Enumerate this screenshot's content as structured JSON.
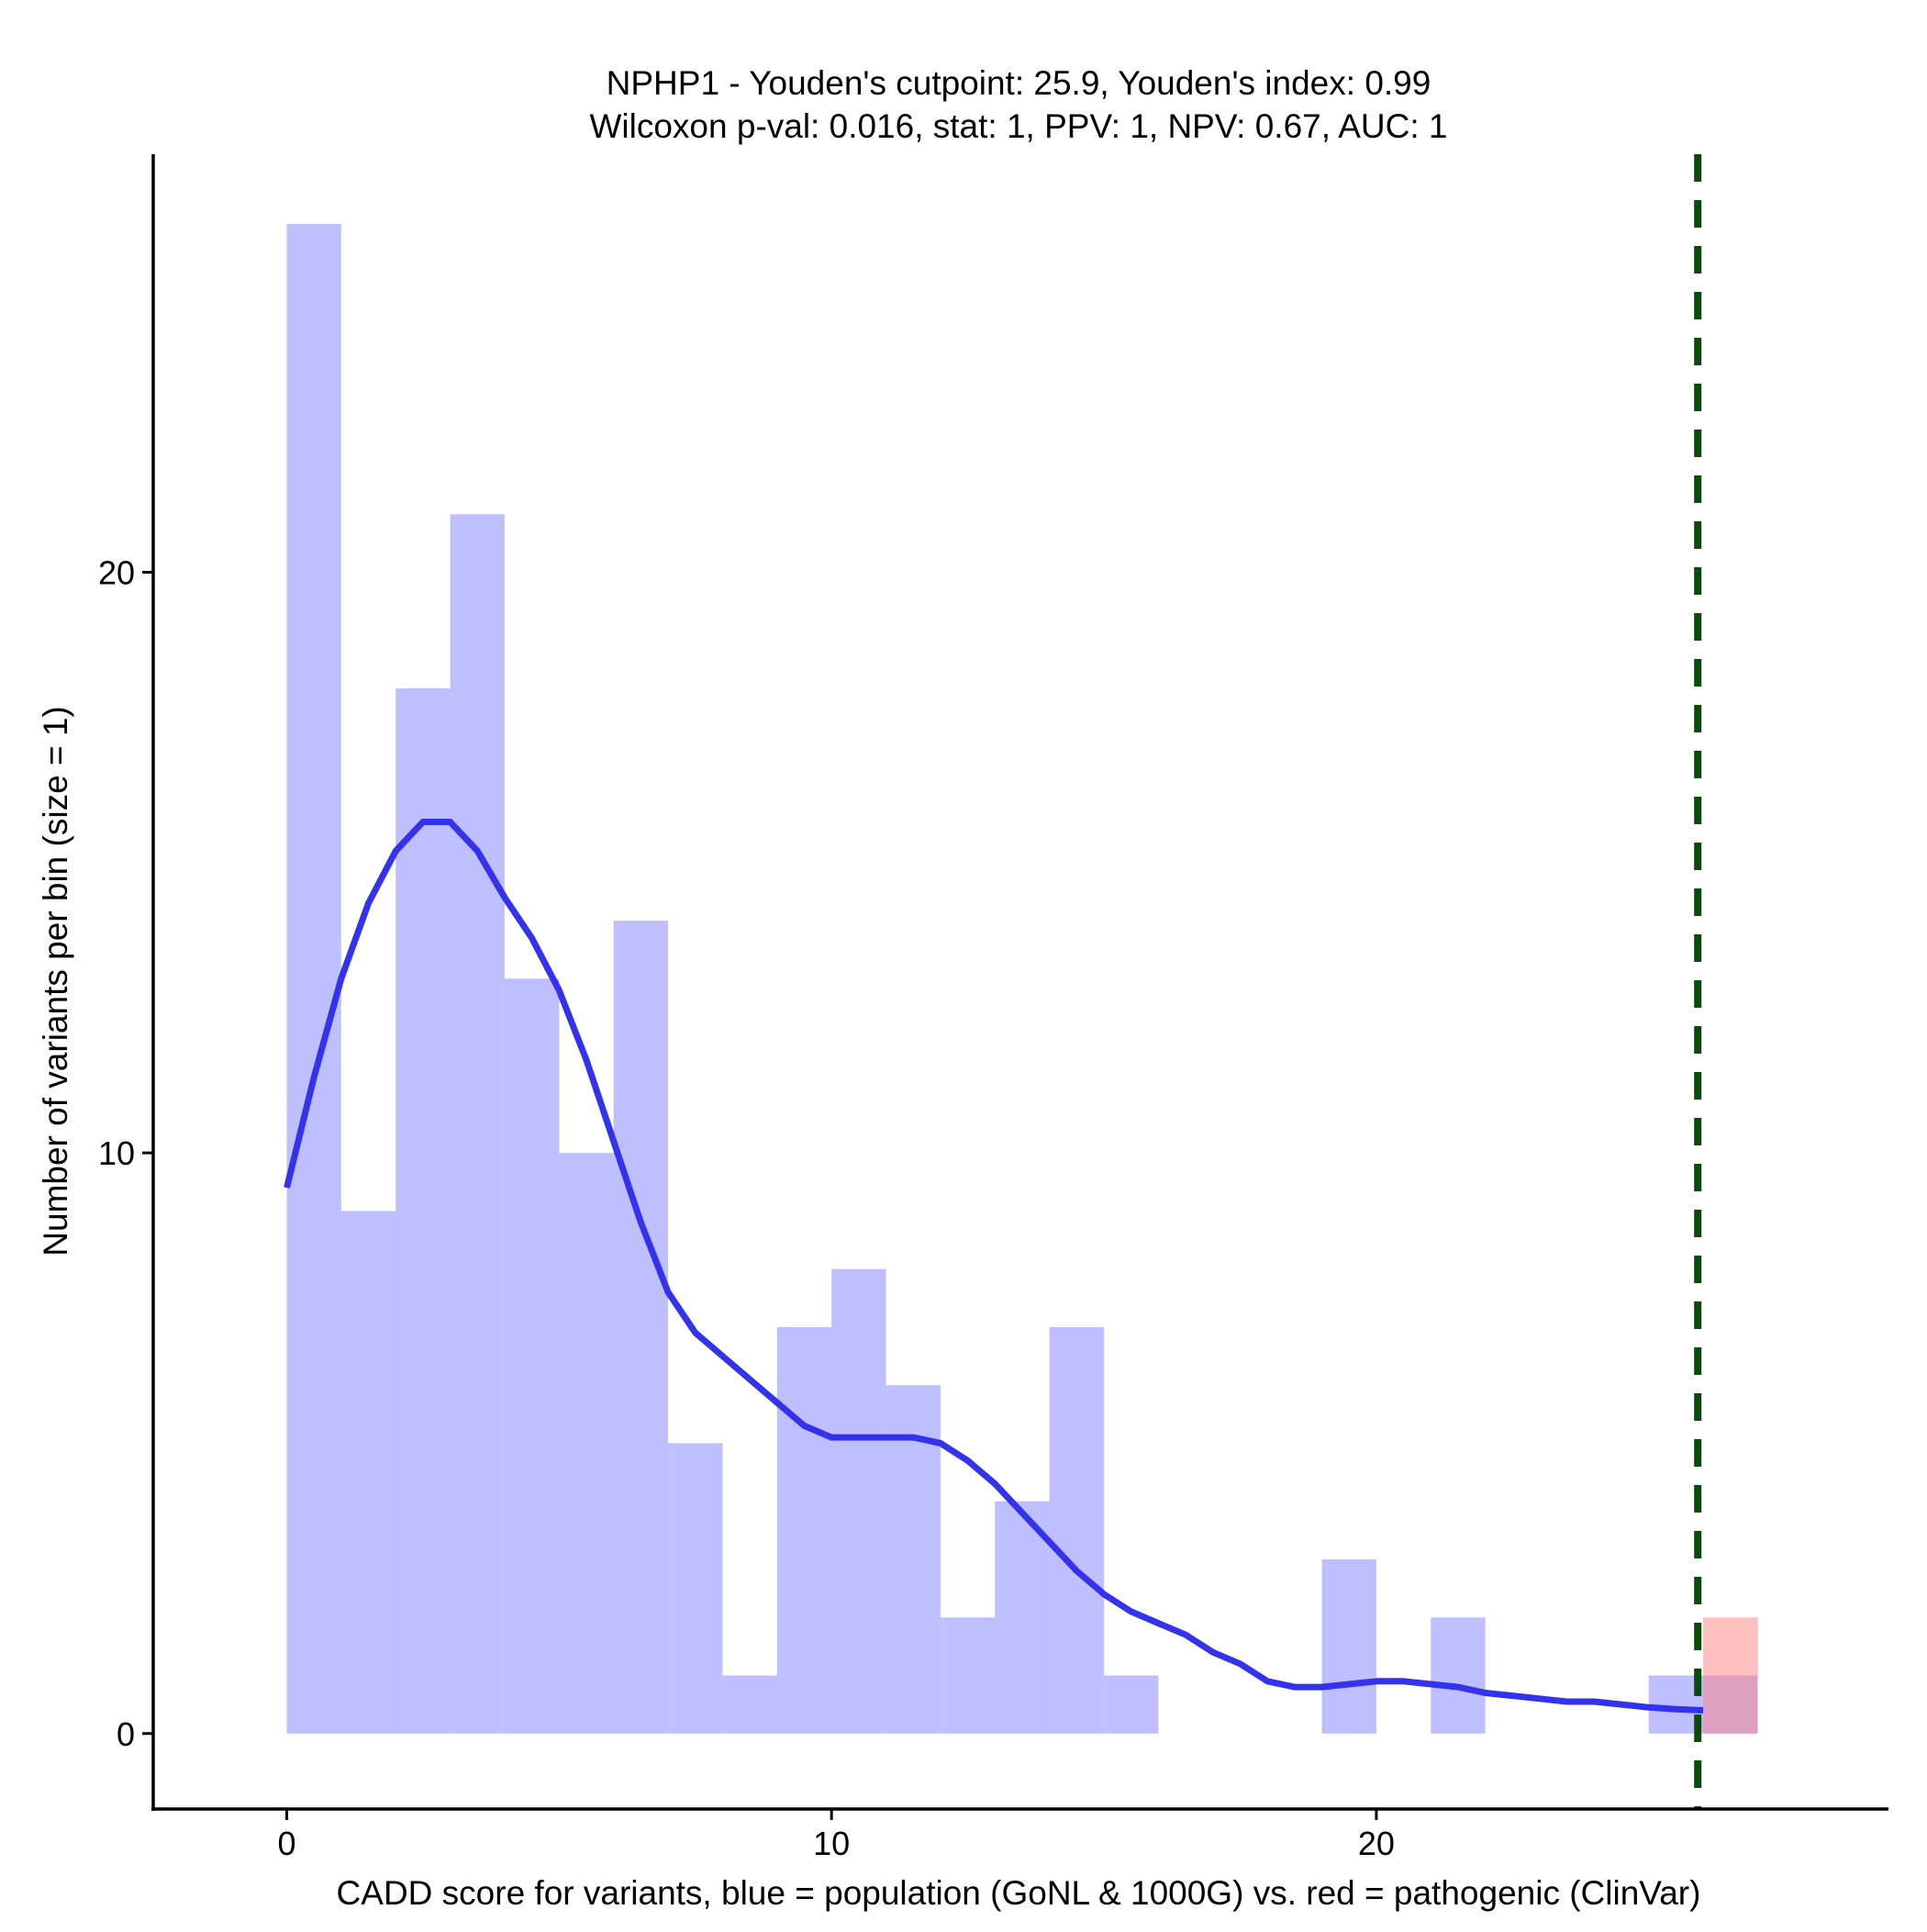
{
  "chart_data": {
    "type": "bar",
    "title": "NPHP1 - Youden's cutpoint: 25.9, Youden's index: 0.99",
    "subtitle": "Wilcoxon p-val: 0.016, stat: 1, PPV: 1, NPV: 0.67, AUC: 1",
    "xlabel": "CADD score for variants, blue = population (GoNL & 1000G) vs. red = pathogenic (ClinVar)",
    "ylabel": "Number of variants per bin (size = 1)",
    "xlim": [
      -2.45,
      29.4
    ],
    "ylim": [
      -1.3,
      27.2
    ],
    "x_ticks": [
      0,
      10,
      20
    ],
    "x_tick_labels": [
      "0",
      "10",
      "20"
    ],
    "y_ticks": [
      0,
      10,
      20
    ],
    "y_tick_labels": [
      "0",
      "10",
      "20"
    ],
    "bin_width": 1,
    "grid": false,
    "series": [
      {
        "name": "population (GoNL & 1000G)",
        "color": "#8080ff",
        "opacity": 0.5,
        "bin_starts": [
          0,
          1,
          2,
          3,
          4,
          5,
          6,
          7,
          8,
          9,
          10,
          11,
          12,
          13,
          14,
          15,
          16,
          17,
          18,
          19,
          20,
          21,
          22,
          23,
          24,
          25,
          26
        ],
        "values": [
          26,
          9,
          18,
          21,
          13,
          10,
          14,
          5,
          1,
          7,
          8,
          6,
          2,
          4,
          7,
          1,
          0,
          0,
          0,
          3,
          0,
          2,
          0,
          0,
          0,
          1,
          1
        ]
      },
      {
        "name": "pathogenic (ClinVar)",
        "color": "#ff8080",
        "opacity": 0.5,
        "bin_starts": [
          26
        ],
        "values": [
          2
        ]
      }
    ],
    "density_line": {
      "name": "population density",
      "color": "#3333ee",
      "x": [
        0,
        0.5,
        1,
        1.5,
        2,
        2.5,
        3,
        3.5,
        4,
        4.5,
        5,
        5.5,
        6,
        6.5,
        7,
        7.5,
        8,
        8.5,
        9,
        9.5,
        10,
        10.5,
        11,
        11.5,
        12,
        12.5,
        13,
        13.5,
        14,
        14.5,
        15,
        15.5,
        16,
        16.5,
        17,
        17.5,
        18,
        18.5,
        19,
        19.5,
        20,
        20.5,
        21,
        21.5,
        22,
        22.5,
        23,
        23.5,
        24,
        24.5,
        25,
        25.5,
        26
      ],
      "y": [
        9.4,
        11.3,
        13,
        14.3,
        15.2,
        15.7,
        15.7,
        15.2,
        14.4,
        13.7,
        12.8,
        11.6,
        10.2,
        8.8,
        7.6,
        6.9,
        6.5,
        6.1,
        5.7,
        5.3,
        5.1,
        5.1,
        5.1,
        5.1,
        5,
        4.7,
        4.3,
        3.8,
        3.3,
        2.8,
        2.4,
        2.1,
        1.9,
        1.7,
        1.4,
        1.2,
        0.9,
        0.8,
        0.8,
        0.85,
        0.9,
        0.9,
        0.85,
        0.8,
        0.7,
        0.65,
        0.6,
        0.55,
        0.55,
        0.5,
        0.45,
        0.42,
        0.4
      ]
    },
    "cutpoint_line": {
      "x": 25.9,
      "color": "#0a4a0a",
      "style": "dashed"
    }
  }
}
